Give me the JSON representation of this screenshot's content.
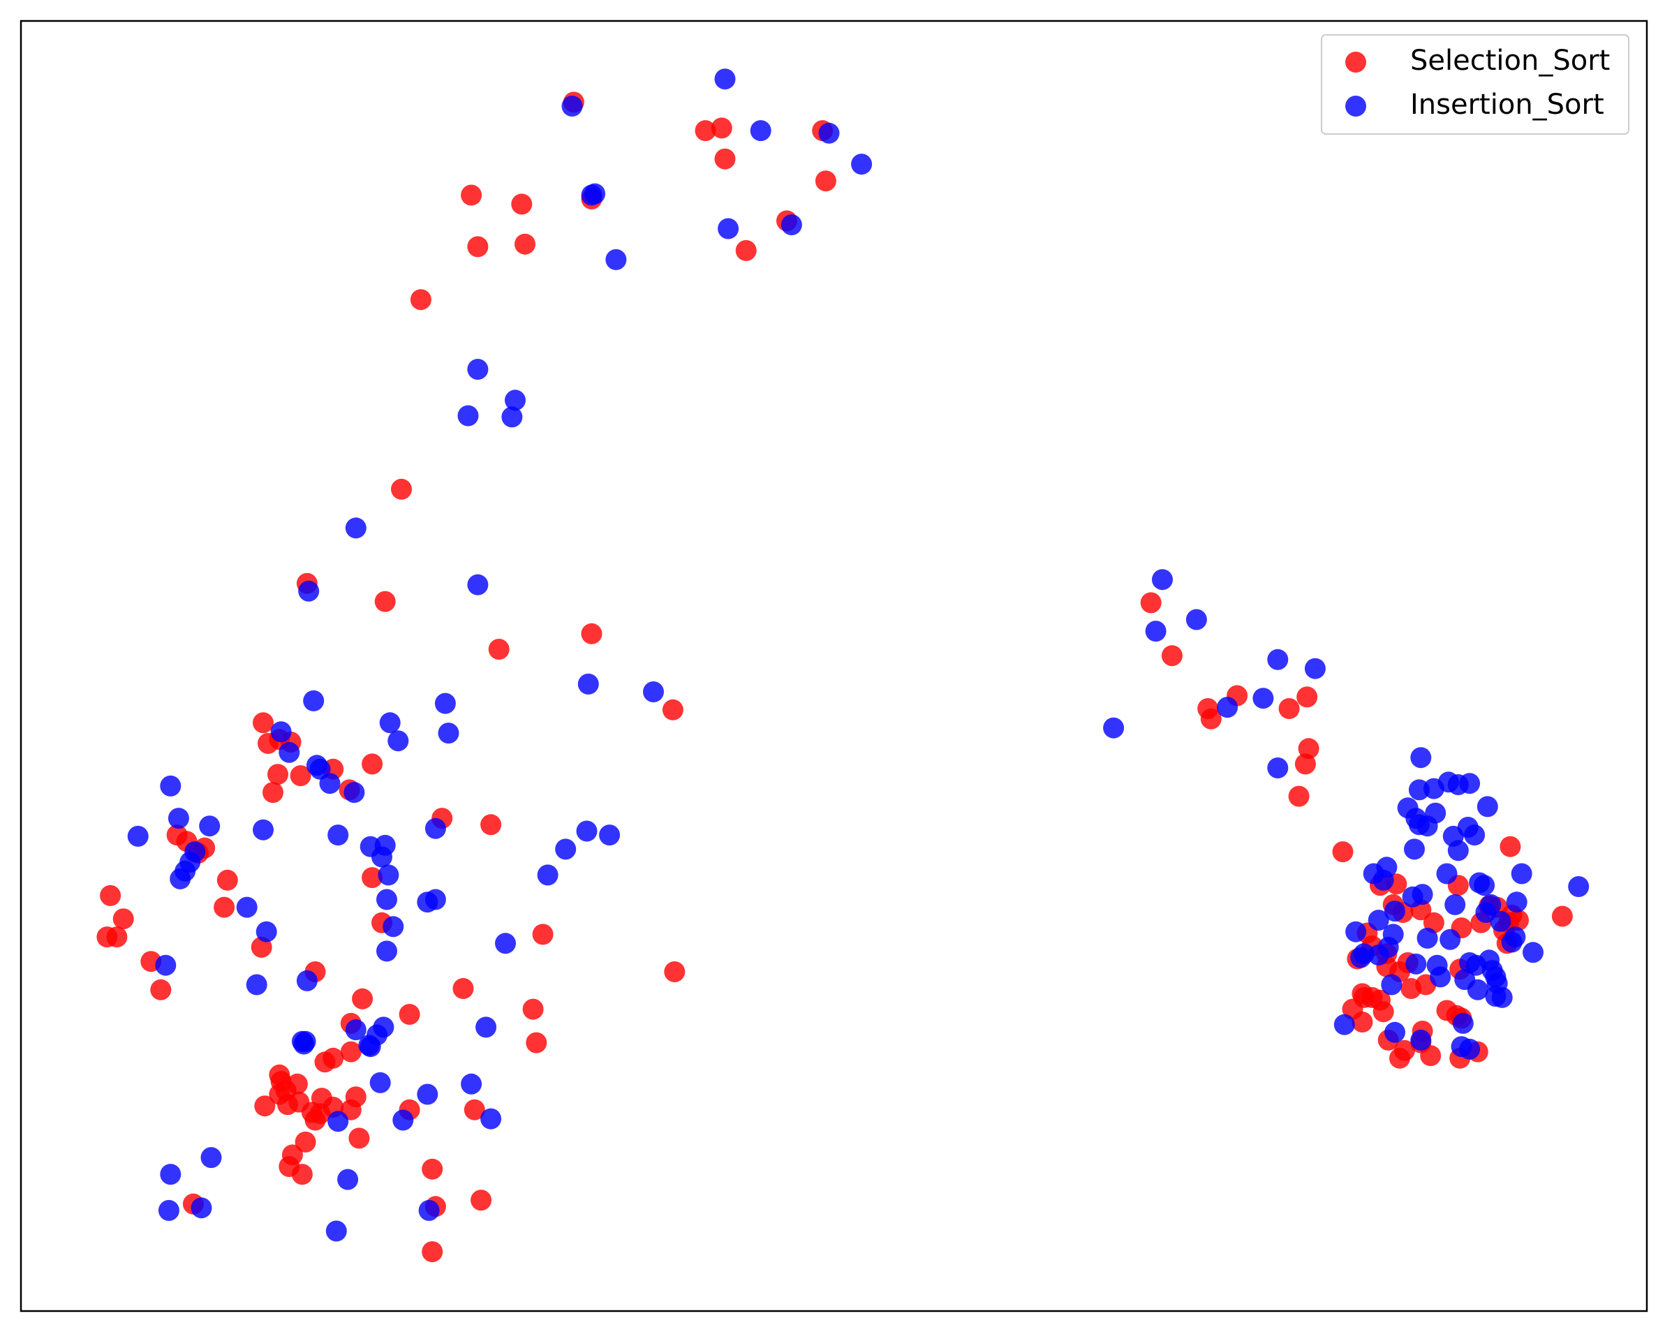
{
  "chart_data": {
    "type": "scatter",
    "title": "",
    "xlabel": "",
    "ylabel": "",
    "xlim": [
      0,
      100
    ],
    "ylim": [
      0,
      100
    ],
    "grid": false,
    "axis_ticks": false,
    "legend_position": "top-right",
    "series": [
      {
        "name": "Selection_Sort",
        "color": "#ff0000",
        "points": [
          [
            34.0,
            93.7
          ],
          [
            42.1,
            91.5
          ],
          [
            43.1,
            91.7
          ],
          [
            49.3,
            91.5
          ],
          [
            35.1,
            86.2
          ],
          [
            43.3,
            89.3
          ],
          [
            49.5,
            87.6
          ],
          [
            47.1,
            84.5
          ],
          [
            44.6,
            82.2
          ],
          [
            27.7,
            86.5
          ],
          [
            30.8,
            85.8
          ],
          [
            28.1,
            82.5
          ],
          [
            31.0,
            82.7
          ],
          [
            24.6,
            78.4
          ],
          [
            23.4,
            63.7
          ],
          [
            17.6,
            56.4
          ],
          [
            29.4,
            51.3
          ],
          [
            22.4,
            55.0
          ],
          [
            35.1,
            52.5
          ],
          [
            40.1,
            46.6
          ],
          [
            14.9,
            45.6
          ],
          [
            15.2,
            44.0
          ],
          [
            16.6,
            44.1
          ],
          [
            15.9,
            44.3
          ],
          [
            15.8,
            41.6
          ],
          [
            21.6,
            42.4
          ],
          [
            15.5,
            40.2
          ],
          [
            17.2,
            41.5
          ],
          [
            19.2,
            42.0
          ],
          [
            20.2,
            40.4
          ],
          [
            28.9,
            37.7
          ],
          [
            25.9,
            38.2
          ],
          [
            10.2,
            36.4
          ],
          [
            9.6,
            36.9
          ],
          [
            10.9,
            35.5
          ],
          [
            11.3,
            35.9
          ],
          [
            12.7,
            33.4
          ],
          [
            21.6,
            33.6
          ],
          [
            12.5,
            31.3
          ],
          [
            5.5,
            32.2
          ],
          [
            6.3,
            30.4
          ],
          [
            5.9,
            29.0
          ],
          [
            5.3,
            29.0
          ],
          [
            8.0,
            27.1
          ],
          [
            8.6,
            24.9
          ],
          [
            14.8,
            28.2
          ],
          [
            22.2,
            30.1
          ],
          [
            32.1,
            29.2
          ],
          [
            18.1,
            26.3
          ],
          [
            21.0,
            24.2
          ],
          [
            27.2,
            25.0
          ],
          [
            31.5,
            23.4
          ],
          [
            40.2,
            26.3
          ],
          [
            31.7,
            20.8
          ],
          [
            20.3,
            22.3
          ],
          [
            23.9,
            23.0
          ],
          [
            20.3,
            20.1
          ],
          [
            18.7,
            19.3
          ],
          [
            19.2,
            19.6
          ],
          [
            16.0,
            17.8
          ],
          [
            15.9,
            18.3
          ],
          [
            16.3,
            17.1
          ],
          [
            17.0,
            17.6
          ],
          [
            15.9,
            16.8
          ],
          [
            18.5,
            16.5
          ],
          [
            17.1,
            16.2
          ],
          [
            16.4,
            16.0
          ],
          [
            15.0,
            15.9
          ],
          [
            18.4,
            15.3
          ],
          [
            19.2,
            15.8
          ],
          [
            20.6,
            16.6
          ],
          [
            20.3,
            15.6
          ],
          [
            18.1,
            14.8
          ],
          [
            17.9,
            15.4
          ],
          [
            20.8,
            13.4
          ],
          [
            17.5,
            13.1
          ],
          [
            16.7,
            12.1
          ],
          [
            16.5,
            11.2
          ],
          [
            17.3,
            10.6
          ],
          [
            23.9,
            15.6
          ],
          [
            27.9,
            15.6
          ],
          [
            25.3,
            11.0
          ],
          [
            10.6,
            8.3
          ],
          [
            25.5,
            8.1
          ],
          [
            28.3,
            8.6
          ],
          [
            25.3,
            4.6
          ],
          [
            69.5,
            54.9
          ],
          [
            70.8,
            50.8
          ],
          [
            73.0,
            46.7
          ],
          [
            73.2,
            45.9
          ],
          [
            74.8,
            47.7
          ],
          [
            78.0,
            46.7
          ],
          [
            79.1,
            47.6
          ],
          [
            79.2,
            43.6
          ],
          [
            79.0,
            42.4
          ],
          [
            78.6,
            39.9
          ],
          [
            81.3,
            35.6
          ],
          [
            91.6,
            36.0
          ],
          [
            83.6,
            33.0
          ],
          [
            84.6,
            33.1
          ],
          [
            88.4,
            33.0
          ],
          [
            86.1,
            31.1
          ],
          [
            88.6,
            29.7
          ],
          [
            84.4,
            31.5
          ],
          [
            85.0,
            30.9
          ],
          [
            86.9,
            30.1
          ],
          [
            89.8,
            30.1
          ],
          [
            91.7,
            30.7
          ],
          [
            90.3,
            31.4
          ],
          [
            90.8,
            31.3
          ],
          [
            94.8,
            30.6
          ],
          [
            91.2,
            29.5
          ],
          [
            91.4,
            28.5
          ],
          [
            91.5,
            30.1
          ],
          [
            92.1,
            30.3
          ],
          [
            82.8,
            29.3
          ],
          [
            83.1,
            28.3
          ],
          [
            82.2,
            27.3
          ],
          [
            84.0,
            26.7
          ],
          [
            84.0,
            27.7
          ],
          [
            85.3,
            27.0
          ],
          [
            84.8,
            26.3
          ],
          [
            83.6,
            24.1
          ],
          [
            85.5,
            25.0
          ],
          [
            82.5,
            24.6
          ],
          [
            82.6,
            24.3
          ],
          [
            83.1,
            24.3
          ],
          [
            88.5,
            26.5
          ],
          [
            86.4,
            25.3
          ],
          [
            88.6,
            22.7
          ],
          [
            87.7,
            23.3
          ],
          [
            88.3,
            22.9
          ],
          [
            83.8,
            23.2
          ],
          [
            81.9,
            23.4
          ],
          [
            86.2,
            21.7
          ],
          [
            82.5,
            22.4
          ],
          [
            84.1,
            21.0
          ],
          [
            85.1,
            20.2
          ],
          [
            86.7,
            19.8
          ],
          [
            88.5,
            19.6
          ],
          [
            89.6,
            20.1
          ],
          [
            86.1,
            20.8
          ],
          [
            84.8,
            19.6
          ]
        ]
      },
      {
        "name": "Insertion_Sort",
        "color": "#0000ff",
        "points": [
          [
            43.3,
            95.5
          ],
          [
            33.9,
            93.4
          ],
          [
            35.1,
            86.5
          ],
          [
            35.3,
            86.6
          ],
          [
            45.5,
            91.5
          ],
          [
            49.7,
            91.3
          ],
          [
            51.7,
            88.9
          ],
          [
            43.5,
            83.9
          ],
          [
            47.4,
            84.2
          ],
          [
            36.6,
            81.5
          ],
          [
            28.1,
            73.0
          ],
          [
            27.5,
            69.4
          ],
          [
            30.4,
            70.6
          ],
          [
            30.2,
            69.3
          ],
          [
            20.6,
            60.7
          ],
          [
            28.1,
            56.3
          ],
          [
            17.7,
            55.8
          ],
          [
            34.9,
            48.6
          ],
          [
            38.9,
            48.0
          ],
          [
            18.0,
            47.3
          ],
          [
            26.1,
            47.1
          ],
          [
            22.7,
            45.6
          ],
          [
            16.0,
            44.9
          ],
          [
            23.2,
            44.2
          ],
          [
            18.2,
            42.3
          ],
          [
            26.3,
            44.8
          ],
          [
            16.5,
            43.3
          ],
          [
            18.4,
            42.0
          ],
          [
            19.0,
            40.9
          ],
          [
            20.5,
            40.2
          ],
          [
            9.2,
            40.7
          ],
          [
            9.7,
            38.2
          ],
          [
            7.2,
            36.8
          ],
          [
            11.6,
            37.6
          ],
          [
            14.9,
            37.3
          ],
          [
            19.5,
            36.9
          ],
          [
            25.5,
            37.4
          ],
          [
            21.5,
            36.0
          ],
          [
            22.4,
            36.1
          ],
          [
            22.2,
            35.2
          ],
          [
            34.8,
            37.2
          ],
          [
            33.5,
            35.8
          ],
          [
            36.2,
            36.9
          ],
          [
            10.7,
            35.6
          ],
          [
            10.4,
            34.8
          ],
          [
            10.1,
            34.1
          ],
          [
            9.8,
            33.5
          ],
          [
            22.6,
            33.8
          ],
          [
            22.5,
            31.9
          ],
          [
            32.4,
            33.8
          ],
          [
            25.5,
            31.9
          ],
          [
            25.0,
            31.7
          ],
          [
            13.9,
            31.3
          ],
          [
            15.1,
            29.4
          ],
          [
            22.9,
            29.8
          ],
          [
            22.5,
            27.9
          ],
          [
            29.8,
            28.5
          ],
          [
            8.9,
            26.8
          ],
          [
            17.6,
            25.6
          ],
          [
            14.5,
            25.3
          ],
          [
            20.6,
            21.8
          ],
          [
            21.5,
            20.5
          ],
          [
            22.3,
            22.0
          ],
          [
            21.9,
            21.4
          ],
          [
            28.6,
            22.0
          ],
          [
            17.5,
            20.9
          ],
          [
            17.4,
            20.7
          ],
          [
            17.3,
            20.9
          ],
          [
            21.4,
            20.6
          ],
          [
            25.0,
            16.8
          ],
          [
            22.1,
            17.7
          ],
          [
            27.7,
            17.6
          ],
          [
            19.5,
            14.7
          ],
          [
            23.5,
            14.8
          ],
          [
            28.9,
            14.9
          ],
          [
            11.7,
            11.9
          ],
          [
            9.2,
            10.6
          ],
          [
            20.1,
            10.2
          ],
          [
            11.1,
            8.0
          ],
          [
            9.1,
            7.8
          ],
          [
            25.1,
            7.8
          ],
          [
            19.4,
            6.2
          ],
          [
            70.2,
            56.7
          ],
          [
            69.8,
            52.7
          ],
          [
            72.3,
            53.6
          ],
          [
            77.3,
            50.5
          ],
          [
            79.6,
            49.8
          ],
          [
            76.4,
            47.5
          ],
          [
            74.2,
            46.8
          ],
          [
            67.2,
            45.2
          ],
          [
            77.3,
            42.1
          ],
          [
            86.1,
            42.9
          ],
          [
            86.9,
            40.5
          ],
          [
            87.8,
            41.0
          ],
          [
            88.4,
            40.8
          ],
          [
            89.1,
            40.9
          ],
          [
            86.0,
            40.4
          ],
          [
            85.3,
            39.0
          ],
          [
            85.8,
            38.2
          ],
          [
            86.0,
            37.7
          ],
          [
            87.0,
            38.6
          ],
          [
            88.1,
            36.8
          ],
          [
            90.2,
            39.1
          ],
          [
            86.5,
            37.6
          ],
          [
            89.0,
            37.5
          ],
          [
            89.4,
            36.9
          ],
          [
            85.7,
            35.8
          ],
          [
            88.4,
            35.7
          ],
          [
            84.0,
            34.4
          ],
          [
            83.2,
            33.9
          ],
          [
            83.8,
            33.4
          ],
          [
            87.7,
            33.9
          ],
          [
            89.7,
            33.2
          ],
          [
            90.0,
            33.0
          ],
          [
            92.3,
            33.9
          ],
          [
            95.8,
            32.9
          ],
          [
            85.6,
            32.1
          ],
          [
            86.2,
            32.3
          ],
          [
            84.5,
            31.0
          ],
          [
            88.2,
            31.5
          ],
          [
            90.4,
            31.5
          ],
          [
            92.0,
            31.7
          ],
          [
            90.1,
            30.9
          ],
          [
            91.0,
            30.2
          ],
          [
            83.5,
            30.3
          ],
          [
            82.1,
            29.4
          ],
          [
            84.4,
            29.2
          ],
          [
            86.5,
            28.9
          ],
          [
            87.9,
            28.8
          ],
          [
            84.1,
            28.2
          ],
          [
            83.5,
            27.6
          ],
          [
            87.1,
            26.8
          ],
          [
            89.1,
            27.0
          ],
          [
            90.3,
            27.2
          ],
          [
            91.9,
            29.0
          ],
          [
            91.7,
            28.6
          ],
          [
            93.0,
            27.8
          ],
          [
            82.6,
            27.7
          ],
          [
            82.4,
            27.4
          ],
          [
            85.8,
            26.9
          ],
          [
            87.3,
            25.9
          ],
          [
            88.8,
            25.7
          ],
          [
            89.5,
            26.8
          ],
          [
            90.5,
            26.4
          ],
          [
            90.7,
            25.9
          ],
          [
            90.8,
            25.4
          ],
          [
            84.3,
            25.3
          ],
          [
            89.6,
            24.9
          ],
          [
            90.7,
            24.4
          ],
          [
            91.1,
            24.3
          ],
          [
            88.7,
            22.3
          ],
          [
            81.4,
            22.2
          ],
          [
            84.5,
            21.6
          ],
          [
            86.1,
            21.0
          ],
          [
            88.6,
            20.5
          ],
          [
            89.1,
            20.3
          ]
        ]
      }
    ]
  }
}
